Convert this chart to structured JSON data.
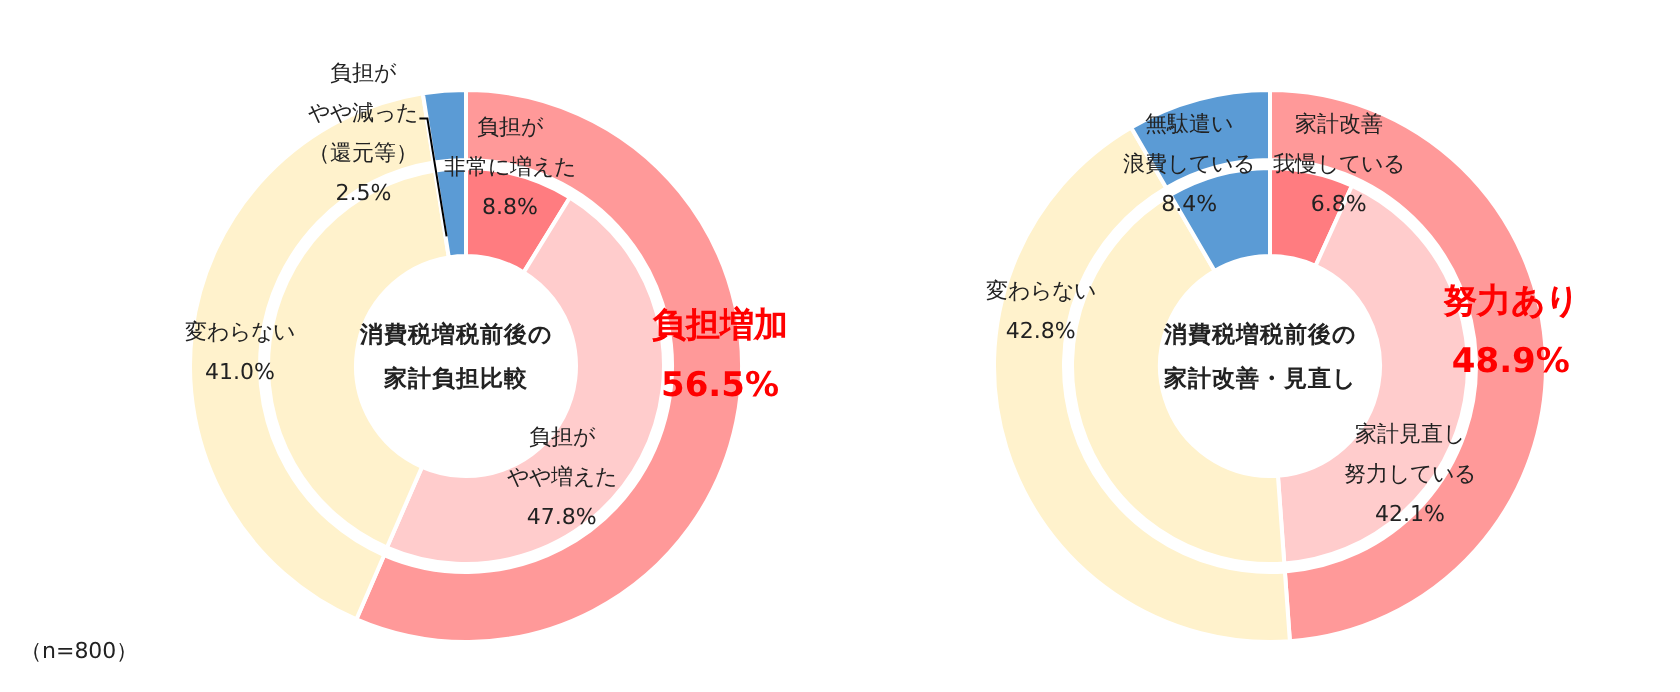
{
  "chart_data": [
    {
      "type": "donut",
      "annotations": [
        "（n=800）"
      ],
      "categories": [
        "負担増加",
        "変わらない",
        "負担がやや減った（還元等）"
      ],
      "values": [
        56.5,
        41.0,
        2.5
      ],
      "colors": [
        "#ff9999",
        "#fff2cc",
        "#5b9bd5"
      ],
      "value_labels": [
        "56.5%",
        "41.0%",
        "2.5%"
      ]
    },
    {
      "type": "donut",
      "title": "消費税増税前後の家計負担比較",
      "categories": [
        "負担が非常に増えた",
        "負担がやや増えた",
        null,
        null
      ],
      "values": [
        8.8,
        47.8,
        41.0,
        2.5
      ],
      "colors": [
        "#ff7c80",
        "#ffcccc",
        "#fff2cc",
        "#5b9bd5"
      ],
      "value_labels": [
        "8.8%",
        "47.8%",
        null,
        null
      ]
    },
    {
      "type": "donut",
      "categories": [
        "努力あり",
        "変わらない",
        "無駄遣い浪費している"
      ],
      "values": [
        48.9,
        42.8,
        8.4
      ],
      "colors": [
        "#ff9999",
        "#fff2cc",
        "#5b9bd5"
      ],
      "value_labels": [
        "48.9%",
        "42.8%",
        "8.4%"
      ]
    },
    {
      "type": "donut",
      "title": "消費税増税前後の家計改善・見直し",
      "categories": [
        "家計改善我慢している",
        "家計見直し努力している",
        null,
        null
      ],
      "values": [
        6.8,
        42.1,
        42.8,
        8.4
      ],
      "colors": [
        "#ff7c80",
        "#ffcccc",
        "#fff2cc",
        "#5b9bd5"
      ],
      "value_labels": [
        "6.8%",
        "42.1%",
        null,
        null
      ]
    }
  ]
}
